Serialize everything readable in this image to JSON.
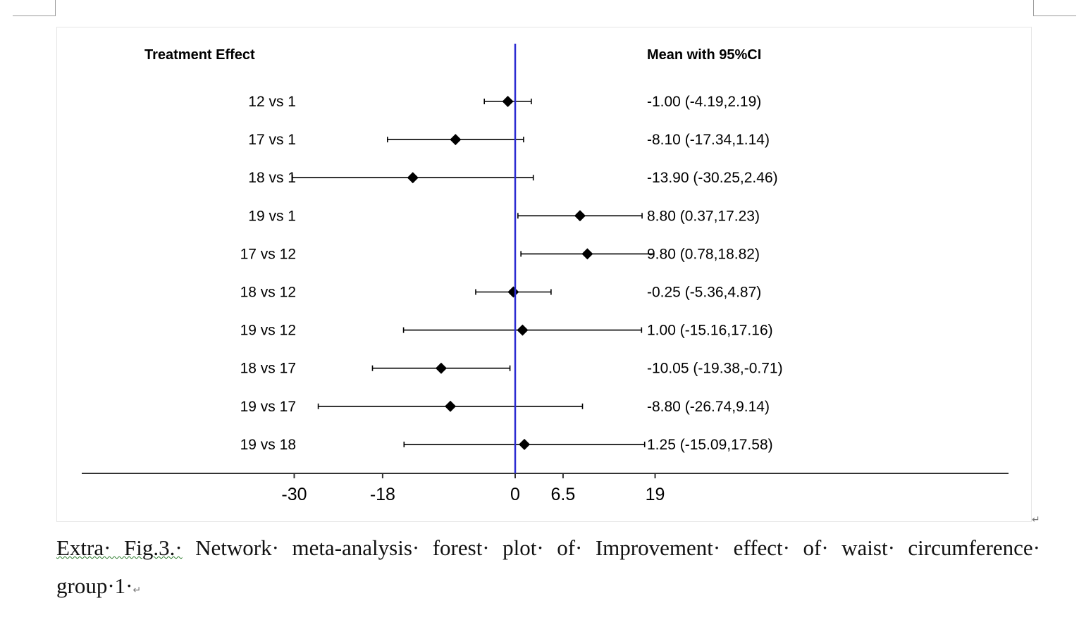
{
  "chart_data": {
    "type": "forest",
    "left_header": "Treatment Effect",
    "right_header": "Mean with 95%CI",
    "rows": [
      {
        "label": "12 vs 1",
        "mean": -1.0,
        "lower": -4.19,
        "upper": 2.19,
        "text": "-1.00 (-4.19,2.19)"
      },
      {
        "label": "17 vs 1",
        "mean": -8.1,
        "lower": -17.34,
        "upper": 1.14,
        "text": "-8.10 (-17.34,1.14)"
      },
      {
        "label": "18 vs 1",
        "mean": -13.9,
        "lower": -30.25,
        "upper": 2.46,
        "text": "-13.90 (-30.25,2.46)"
      },
      {
        "label": "19 vs 1",
        "mean": 8.8,
        "lower": 0.37,
        "upper": 17.23,
        "text": "8.80 (0.37,17.23)"
      },
      {
        "label": "17 vs 12",
        "mean": 9.8,
        "lower": 0.78,
        "upper": 18.82,
        "text": "9.80 (0.78,18.82)"
      },
      {
        "label": "18 vs 12",
        "mean": -0.25,
        "lower": -5.36,
        "upper": 4.87,
        "text": "-0.25 (-5.36,4.87)"
      },
      {
        "label": "19 vs 12",
        "mean": 1.0,
        "lower": -15.16,
        "upper": 17.16,
        "text": "1.00 (-15.16,17.16)"
      },
      {
        "label": "18 vs 17",
        "mean": -10.05,
        "lower": -19.38,
        "upper": -0.71,
        "text": "-10.05 (-19.38,-0.71)"
      },
      {
        "label": "19 vs 17",
        "mean": -8.8,
        "lower": -26.74,
        "upper": 9.14,
        "text": "-8.80 (-26.74,9.14)"
      },
      {
        "label": "19 vs 18",
        "mean": 1.25,
        "lower": -15.09,
        "upper": 17.58,
        "text": "1.25 (-15.09,17.58)"
      }
    ],
    "xticks": [
      -30,
      -18,
      0,
      6.5,
      19
    ],
    "xtick_labels": [
      "-30",
      "-18",
      "0",
      "6.5",
      "19"
    ],
    "reference_line": 0,
    "reference_line_color": "#2b2bd1",
    "marker": "diamond",
    "marker_color": "#000000"
  },
  "caption": {
    "line1_prefix": "Extra· Fig.3.·",
    "line1_rest": " Network· meta-analysis· forest· plot· of· Improvement· effect· of· waist· circumference·",
    "line2": "group·1·",
    "paragraph_mark": "↵"
  }
}
